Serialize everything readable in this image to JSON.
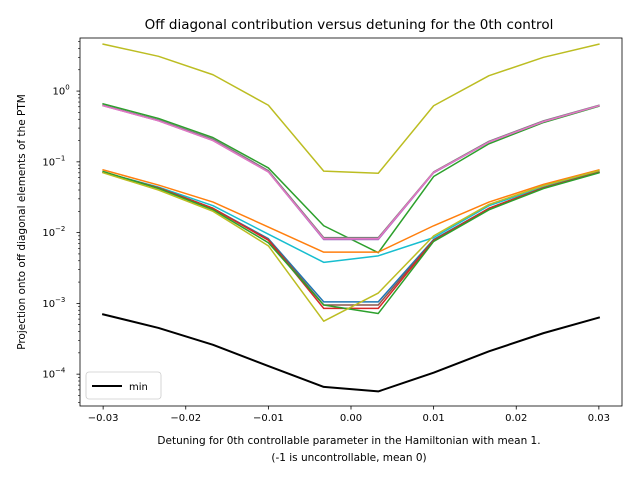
{
  "chart_data": {
    "type": "line",
    "title": "Off diagonal contribution versus detuning for the 0th control",
    "xlabel_line1": "Detuning for 0th controllable parameter in the Hamiltonian with mean 1.",
    "xlabel_line2": "(-1 is uncontrollable, mean 0)",
    "ylabel": "Projection onto off diagonal elements of the PTM",
    "x": [
      -0.03,
      -0.0233,
      -0.0167,
      -0.01,
      -0.0033,
      0.0033,
      0.01,
      0.0167,
      0.0233,
      0.03
    ],
    "xlim": [
      -0.0328,
      0.0328
    ],
    "ylim_log10": [
      -4.45,
      0.75
    ],
    "yscale": "log",
    "x_ticks": [
      -0.03,
      -0.02,
      -0.01,
      0.0,
      0.01,
      0.02,
      0.03
    ],
    "x_tick_labels": [
      "−0.03",
      "−0.02",
      "−0.01",
      "0.00",
      "0.01",
      "0.02",
      "0.03"
    ],
    "y_major_exponents": [
      -4,
      -3,
      -2,
      -1,
      0
    ],
    "y_tick_labels": [
      "10",
      "10",
      "10",
      "10",
      "10"
    ],
    "y_tick_exponent_labels": [
      "−4",
      "−3",
      "−2",
      "−1",
      "0"
    ],
    "legend": {
      "position": "lower-left",
      "entries": [
        "min"
      ]
    },
    "series": [
      {
        "color": "#bcbd22",
        "width": 1.5,
        "values": [
          4.6,
          3.1,
          1.7,
          0.63,
          0.074,
          0.069,
          0.62,
          1.65,
          3.0,
          4.6
        ]
      },
      {
        "color": "#2ca02c",
        "width": 1.5,
        "values": [
          0.66,
          0.41,
          0.22,
          0.082,
          0.0125,
          0.0052,
          0.062,
          0.18,
          0.36,
          0.61
        ]
      },
      {
        "color": "#7f7f7f",
        "width": 1.5,
        "values": [
          0.63,
          0.39,
          0.21,
          0.075,
          0.0085,
          0.0085,
          0.072,
          0.195,
          0.38,
          0.63
        ]
      },
      {
        "color": "#9467bd",
        "width": 1.5,
        "values": [
          0.62,
          0.38,
          0.2,
          0.072,
          0.008,
          0.008,
          0.07,
          0.19,
          0.37,
          0.62
        ]
      },
      {
        "color": "#e377c2",
        "width": 1.5,
        "values": [
          0.62,
          0.38,
          0.2,
          0.072,
          0.0082,
          0.0082,
          0.071,
          0.19,
          0.37,
          0.62
        ]
      },
      {
        "color": "#ff7f0e",
        "width": 1.5,
        "values": [
          0.077,
          0.047,
          0.027,
          0.012,
          0.0053,
          0.0053,
          0.0125,
          0.027,
          0.048,
          0.077
        ]
      },
      {
        "color": "#17becf",
        "width": 1.5,
        "values": [
          0.071,
          0.044,
          0.024,
          0.0095,
          0.0038,
          0.0047,
          0.0085,
          0.024,
          0.044,
          0.074
        ]
      },
      {
        "color": "#1f77b4",
        "width": 1.5,
        "values": [
          0.072,
          0.043,
          0.022,
          0.0082,
          0.00105,
          0.00105,
          0.008,
          0.022,
          0.043,
          0.072
        ]
      },
      {
        "color": "#8c564b",
        "width": 1.5,
        "values": [
          0.071,
          0.043,
          0.022,
          0.008,
          0.00095,
          0.00095,
          0.0078,
          0.022,
          0.043,
          0.071
        ]
      },
      {
        "color": "#d62728",
        "width": 1.5,
        "values": [
          0.071,
          0.043,
          0.022,
          0.0078,
          0.00085,
          0.00085,
          0.0077,
          0.022,
          0.043,
          0.071
        ]
      },
      {
        "color": "#2ca02c",
        "width": 1.5,
        "values": [
          0.073,
          0.042,
          0.021,
          0.0072,
          0.00095,
          0.00072,
          0.0075,
          0.021,
          0.042,
          0.07
        ]
      },
      {
        "color": "#bcbd22",
        "width": 1.5,
        "values": [
          0.07,
          0.04,
          0.02,
          0.0065,
          0.00056,
          0.0014,
          0.009,
          0.025,
          0.046,
          0.075
        ]
      },
      {
        "name": "min",
        "color": "#000000",
        "width": 2.0,
        "values": [
          0.0007,
          0.00045,
          0.00026,
          0.00013,
          6.6e-05,
          5.7e-05,
          0.000105,
          0.00021,
          0.00038,
          0.00063
        ]
      }
    ]
  }
}
